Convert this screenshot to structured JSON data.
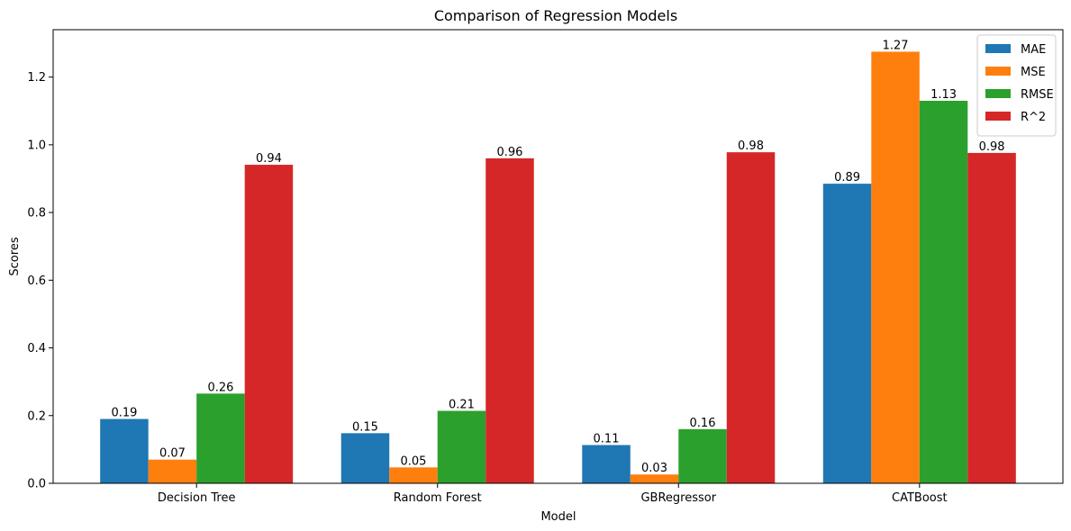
{
  "chart_data": {
    "type": "bar",
    "title": "Comparison of Regression Models",
    "xlabel": "Model",
    "ylabel": "Scores",
    "categories": [
      "Decision Tree",
      "Random Forest",
      "GBRegressor",
      "CATBoost"
    ],
    "series": [
      {
        "name": "MAE",
        "color": "#1f77b4",
        "values": [
          0.19,
          0.148,
          0.113,
          0.885
        ],
        "labels": [
          "0.19",
          "0.15",
          "0.11",
          "0.89"
        ]
      },
      {
        "name": "MSE",
        "color": "#ff7f0e",
        "values": [
          0.07,
          0.047,
          0.026,
          1.275
        ],
        "labels": [
          "0.07",
          "0.05",
          "0.03",
          "1.27"
        ]
      },
      {
        "name": "RMSE",
        "color": "#2ca02c",
        "values": [
          0.265,
          0.214,
          0.16,
          1.13
        ],
        "labels": [
          "0.26",
          "0.21",
          "0.16",
          "1.13"
        ]
      },
      {
        "name": "R^2",
        "color": "#d62728",
        "values": [
          0.941,
          0.96,
          0.978,
          0.976
        ],
        "labels": [
          "0.94",
          "0.96",
          "0.98",
          "0.98"
        ]
      }
    ],
    "yticks": [
      "0.0",
      "0.2",
      "0.4",
      "0.6",
      "0.8",
      "1.0",
      "1.2"
    ],
    "ylim": [
      0,
      1.34
    ],
    "grid": false,
    "legend": "top-right"
  }
}
